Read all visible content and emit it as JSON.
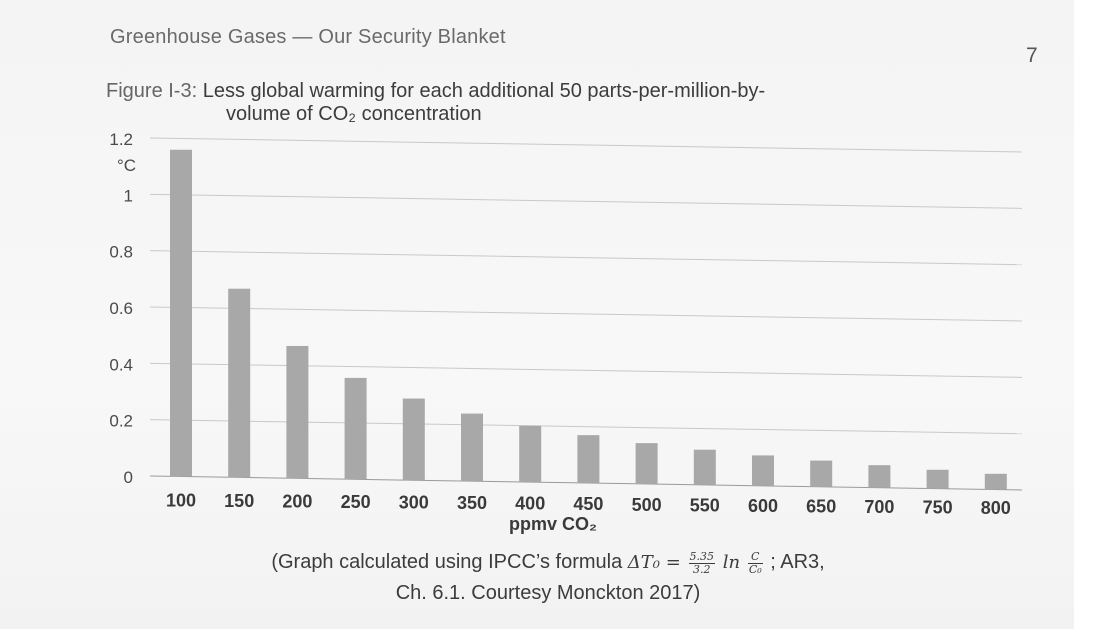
{
  "header": {
    "running_title": "Greenhouse Gases — Our Security Blanket",
    "page_number": "7"
  },
  "figure": {
    "label": "Figure I-3:",
    "caption_line1": "Less global warming for each additional 50 parts-per-million-by-",
    "caption_line2": "volume of CO₂ concentration",
    "source_prefix": "(Graph calculated using IPCC’s formula ",
    "formula_lhs": "ΔT₀ = ",
    "formula_num": "5.35",
    "formula_den": "3.2",
    "formula_ln": " ln ",
    "formula_c_num": "C",
    "formula_c_den": "C₀",
    "source_suffix": " ; AR3,",
    "source_line2": "Ch. 6.1. Courtesy Monckton 2017)"
  },
  "chart_data": {
    "type": "bar",
    "title": "",
    "xlabel": "ppmv CO₂",
    "ylabel": "°C",
    "ylim": [
      0,
      1.2
    ],
    "yticks": [
      0,
      0.2,
      0.4,
      0.6,
      0.8,
      1,
      1.2
    ],
    "ytick_labels": [
      "0",
      "0.2",
      "0.4",
      "0.6",
      "0.8",
      "1",
      "1.2"
    ],
    "grid": true,
    "categories": [
      "100",
      "150",
      "200",
      "250",
      "300",
      "350",
      "400",
      "450",
      "500",
      "550",
      "600",
      "650",
      "700",
      "750",
      "800"
    ],
    "values": [
      1.16,
      0.67,
      0.47,
      0.36,
      0.29,
      0.24,
      0.2,
      0.17,
      0.145,
      0.125,
      0.108,
      0.093,
      0.08,
      0.067,
      0.056
    ],
    "bar_color": "#a8a8a8"
  }
}
